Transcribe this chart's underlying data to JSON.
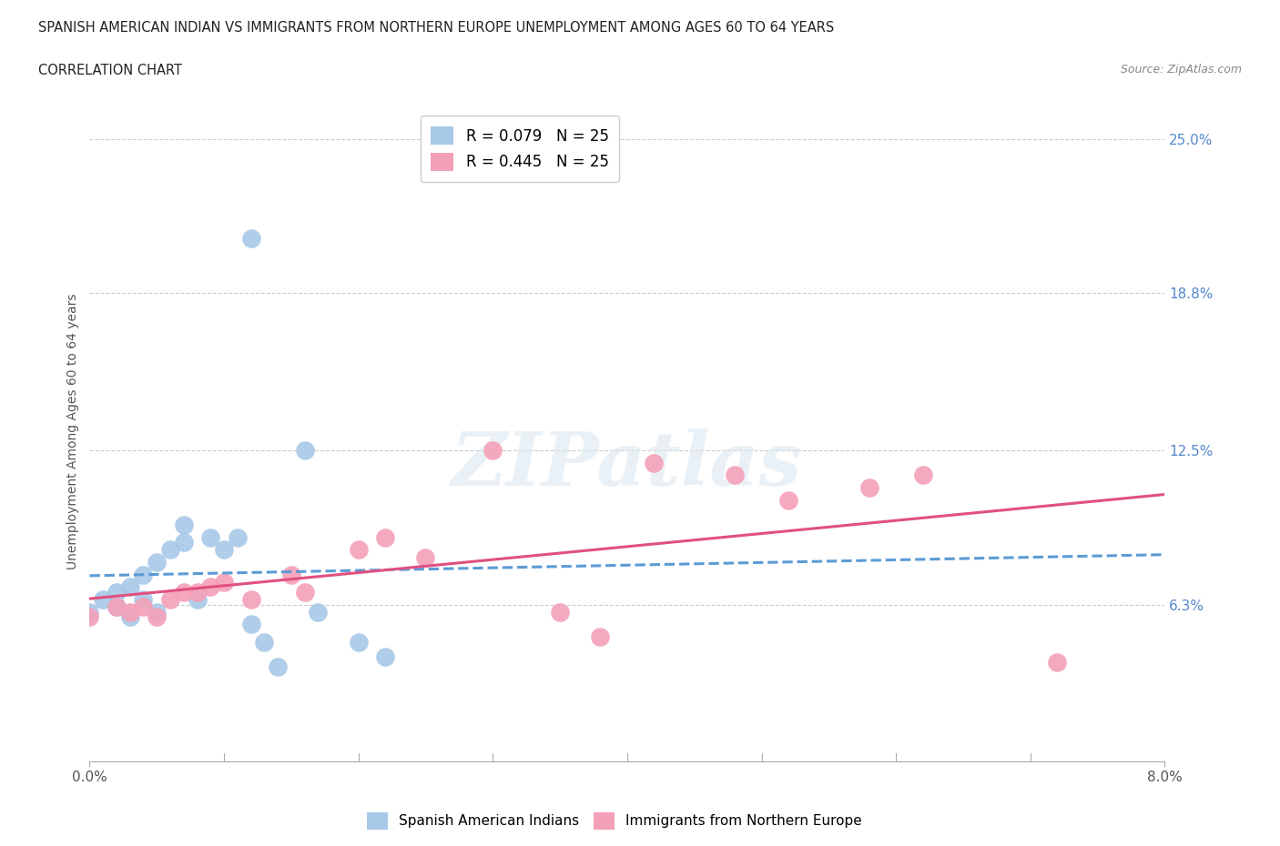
{
  "title_line1": "SPANISH AMERICAN INDIAN VS IMMIGRANTS FROM NORTHERN EUROPE UNEMPLOYMENT AMONG AGES 60 TO 64 YEARS",
  "title_line2": "CORRELATION CHART",
  "source_text": "Source: ZipAtlas.com",
  "ylabel": "Unemployment Among Ages 60 to 64 years",
  "xlim": [
    0.0,
    0.08
  ],
  "ylim": [
    0.0,
    0.265
  ],
  "ytick_labels": [
    "6.3%",
    "12.5%",
    "18.8%",
    "25.0%"
  ],
  "ytick_values": [
    0.063,
    0.125,
    0.188,
    0.25
  ],
  "xtick_labels": [
    "0.0%",
    "8.0%"
  ],
  "xtick_values": [
    0.0,
    0.08
  ],
  "r_blue": 0.079,
  "r_pink": 0.445,
  "n_blue": 25,
  "n_pink": 25,
  "blue_color": "#a8c8e8",
  "pink_color": "#f4a0b8",
  "blue_line_color": "#5b9bd5",
  "pink_line_color": "#e05080",
  "legend_blue_label": "Spanish American Indians",
  "legend_pink_label": "Immigrants from Northern Europe",
  "watermark_text": "ZIPatlas",
  "blue_scatter_x": [
    0.0,
    0.001,
    0.002,
    0.002,
    0.003,
    0.003,
    0.004,
    0.004,
    0.005,
    0.005,
    0.006,
    0.007,
    0.007,
    0.008,
    0.009,
    0.01,
    0.011,
    0.012,
    0.013,
    0.014,
    0.016,
    0.017,
    0.02,
    0.022,
    0.012
  ],
  "blue_scatter_y": [
    0.06,
    0.065,
    0.062,
    0.068,
    0.058,
    0.07,
    0.065,
    0.075,
    0.06,
    0.08,
    0.085,
    0.088,
    0.095,
    0.065,
    0.09,
    0.085,
    0.09,
    0.055,
    0.048,
    0.038,
    0.125,
    0.06,
    0.048,
    0.042,
    0.21
  ],
  "pink_scatter_x": [
    0.0,
    0.002,
    0.003,
    0.004,
    0.005,
    0.006,
    0.007,
    0.008,
    0.009,
    0.01,
    0.012,
    0.015,
    0.016,
    0.02,
    0.022,
    0.025,
    0.03,
    0.035,
    0.038,
    0.042,
    0.048,
    0.052,
    0.058,
    0.062,
    0.072
  ],
  "pink_scatter_y": [
    0.058,
    0.062,
    0.06,
    0.062,
    0.058,
    0.065,
    0.068,
    0.068,
    0.07,
    0.072,
    0.065,
    0.075,
    0.068,
    0.085,
    0.09,
    0.082,
    0.125,
    0.06,
    0.05,
    0.12,
    0.115,
    0.105,
    0.11,
    0.115,
    0.04
  ],
  "background_color": "#ffffff",
  "grid_color": "#cccccc",
  "blue_trend_intercept": 0.073,
  "blue_trend_slope": 0.65,
  "pink_trend_intercept": 0.055,
  "pink_trend_slope": 1.05
}
